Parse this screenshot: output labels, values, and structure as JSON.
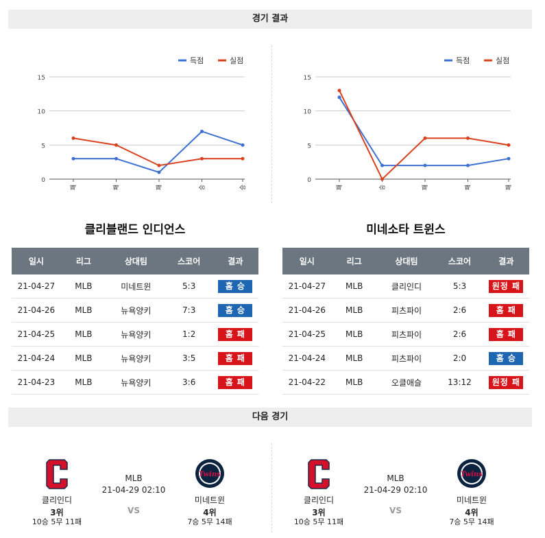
{
  "results_header": "경기 결과",
  "next_header": "다음 경기",
  "legend": {
    "scored": "득점",
    "allowed": "실점"
  },
  "colors": {
    "scored": "#3b6fd1",
    "allowed": "#d9401e",
    "win": "#1f66b2",
    "lose": "#d7141a",
    "table_head": "#6c7681"
  },
  "chart_data": [
    {
      "type": "line",
      "categories": [
        "패",
        "패",
        "패",
        "승",
        "승"
      ],
      "ylim": [
        0,
        15
      ],
      "yticks": [
        0,
        5,
        10,
        15
      ],
      "grid": true,
      "legend_position": "top-right",
      "series": [
        {
          "name": "득점",
          "values": [
            3,
            3,
            1,
            7,
            5
          ]
        },
        {
          "name": "실점",
          "values": [
            6,
            5,
            2,
            3,
            3
          ]
        }
      ]
    },
    {
      "type": "line",
      "categories": [
        "패",
        "승",
        "패",
        "패",
        "패"
      ],
      "ylim": [
        0,
        15
      ],
      "yticks": [
        0,
        5,
        10,
        15
      ],
      "grid": true,
      "legend_position": "top-right",
      "series": [
        {
          "name": "득점",
          "values": [
            12,
            2,
            2,
            2,
            3
          ]
        },
        {
          "name": "실점",
          "values": [
            13,
            0,
            6,
            6,
            5
          ]
        }
      ]
    }
  ],
  "teams": [
    {
      "title": "클리블랜드 인디언스",
      "headers": [
        "일시",
        "리그",
        "상대팀",
        "스코어",
        "결과"
      ],
      "rows": [
        {
          "date": "21-04-27",
          "league": "MLB",
          "opponent": "미네트윈",
          "score": "5:3",
          "result": "홈 승",
          "win": true
        },
        {
          "date": "21-04-26",
          "league": "MLB",
          "opponent": "뉴욕양키",
          "score": "7:3",
          "result": "홈 승",
          "win": true
        },
        {
          "date": "21-04-25",
          "league": "MLB",
          "opponent": "뉴욕양키",
          "score": "1:2",
          "result": "홈 패",
          "win": false
        },
        {
          "date": "21-04-24",
          "league": "MLB",
          "opponent": "뉴욕양키",
          "score": "3:5",
          "result": "홈 패",
          "win": false
        },
        {
          "date": "21-04-23",
          "league": "MLB",
          "opponent": "뉴욕양키",
          "score": "3:6",
          "result": "홈 패",
          "win": false
        }
      ]
    },
    {
      "title": "미네소타 트윈스",
      "headers": [
        "일시",
        "리그",
        "상대팀",
        "스코어",
        "결과"
      ],
      "rows": [
        {
          "date": "21-04-27",
          "league": "MLB",
          "opponent": "클리인디",
          "score": "5:3",
          "result": "원정 패",
          "win": false
        },
        {
          "date": "21-04-26",
          "league": "MLB",
          "opponent": "피츠파이",
          "score": "2:6",
          "result": "홈 패",
          "win": false
        },
        {
          "date": "21-04-25",
          "league": "MLB",
          "opponent": "피츠파이",
          "score": "2:6",
          "result": "홈 패",
          "win": false
        },
        {
          "date": "21-04-24",
          "league": "MLB",
          "opponent": "피츠파이",
          "score": "2:0",
          "result": "홈 승",
          "win": true
        },
        {
          "date": "21-04-22",
          "league": "MLB",
          "opponent": "오클애슬",
          "score": "13:12",
          "result": "원정 패",
          "win": false
        }
      ]
    }
  ],
  "next_games": [
    {
      "league": "MLB",
      "datetime": "21-04-29 02:10",
      "vs": "VS",
      "home": {
        "name": "클리인디",
        "rank": "3위",
        "record": "10승 5무 11패",
        "logo": "cleveland-c-logo"
      },
      "away": {
        "name": "미네트윈",
        "rank": "4위",
        "record": "7승 5무 14패",
        "logo": "twins-logo"
      }
    },
    {
      "league": "MLB",
      "datetime": "21-04-29 02:10",
      "vs": "VS",
      "home": {
        "name": "클리인디",
        "rank": "3위",
        "record": "10승 5무 11패",
        "logo": "cleveland-c-logo"
      },
      "away": {
        "name": "미네트윈",
        "rank": "4위",
        "record": "7승 5무 14패",
        "logo": "twins-logo"
      }
    }
  ]
}
